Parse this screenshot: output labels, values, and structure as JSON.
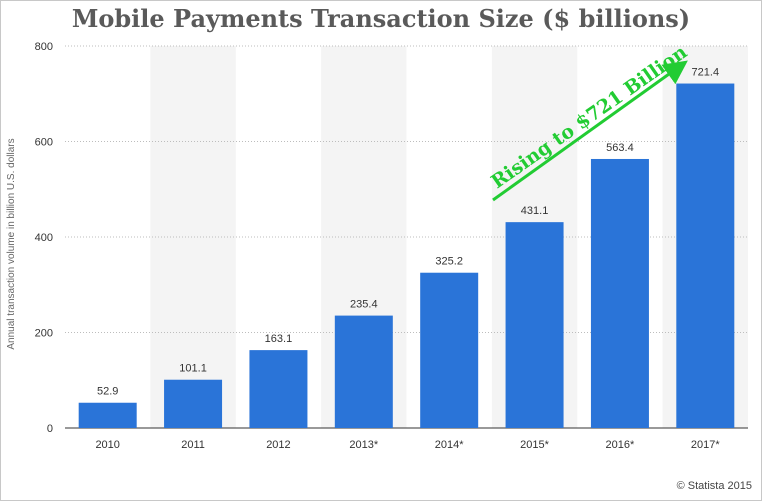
{
  "chart_data": {
    "type": "bar",
    "title": "Mobile Payments Transaction Size ($ billions)",
    "ylabel": "Annual transaction volume in billion U.S. dollars",
    "xlabel": "",
    "categories": [
      "2010",
      "2011",
      "2012",
      "2013*",
      "2014*",
      "2015*",
      "2016*",
      "2017*"
    ],
    "values": [
      52.9,
      101.1,
      163.1,
      235.4,
      325.2,
      431.1,
      563.4,
      721.4
    ],
    "value_labels": [
      "52.9",
      "101.1",
      "163.1",
      "235.4",
      "325.2",
      "431.1",
      "563.4",
      "721.4"
    ],
    "ylim": [
      0,
      800
    ],
    "yticks": [
      0,
      200,
      400,
      600,
      800
    ],
    "ytick_labels": [
      "0",
      "200",
      "400",
      "600",
      "800"
    ],
    "grid": true,
    "bar_color": "#2a74d8",
    "annotation": {
      "text": "Rising to $721 Billion",
      "color": "#22cc33"
    }
  },
  "credit": "© Statista 2015"
}
